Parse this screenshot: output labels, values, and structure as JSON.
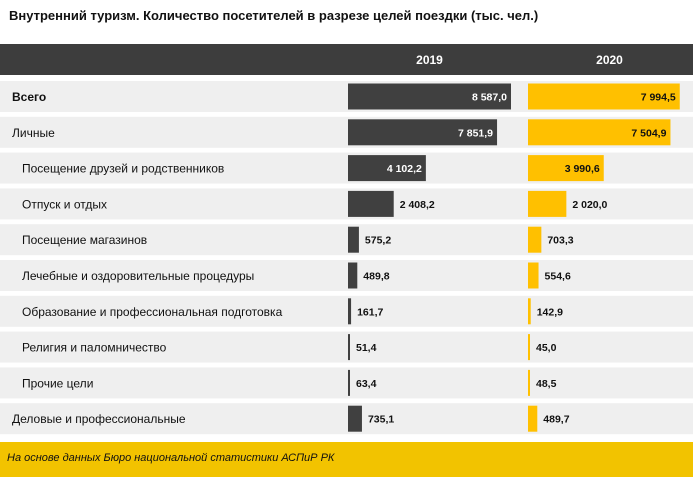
{
  "title": "Внутренний туризм. Количество посетителей в разрезе целей поездки (тыс. чел.)",
  "source": "На основе данных Бюро национальной статистики АСПиР РК",
  "colors": {
    "header_bg": "#3d3d3d",
    "row_bg": "#efefef",
    "bar_2019": "#404040",
    "bar_2020": "#ffc000"
  },
  "chart_data": {
    "type": "bar",
    "orientation": "horizontal",
    "title": "Внутренний туризм. Количество посетителей в разрезе целей поездки (тыс. чел.)",
    "categories": [
      "Всего",
      "Личные",
      "Посещение друзей и родственников",
      "Отпуск и отдых",
      "Посещение магазинов",
      "Лечебные и оздоровительные процедуры",
      "Образование и профессиональная подготовка",
      "Религия и паломничество",
      "Прочие цели",
      "Деловые и профессиональные"
    ],
    "indent": [
      0,
      0,
      1,
      1,
      1,
      1,
      1,
      1,
      1,
      0
    ],
    "bold": [
      true,
      false,
      false,
      false,
      false,
      false,
      false,
      false,
      false,
      false
    ],
    "series": [
      {
        "name": "2019",
        "values": [
          8587.0,
          7851.9,
          4102.2,
          2408.2,
          575.2,
          489.8,
          161.7,
          51.4,
          63.4,
          735.1
        ],
        "labels": [
          "8 587,0",
          "7 851,9",
          "4 102,2",
          "2 408,2",
          "575,2",
          "489,8",
          "161,7",
          "51,4",
          "63,4",
          "735,1"
        ]
      },
      {
        "name": "2020",
        "values": [
          7994.5,
          7504.9,
          3990.6,
          2020.0,
          703.3,
          554.6,
          142.9,
          45.0,
          48.5,
          489.7
        ],
        "labels": [
          "7 994,5",
          "7 504,9",
          "3 990,6",
          "2 020,0",
          "703,3",
          "554,6",
          "142,9",
          "45,0",
          "48,5",
          "489,7"
        ]
      }
    ]
  }
}
